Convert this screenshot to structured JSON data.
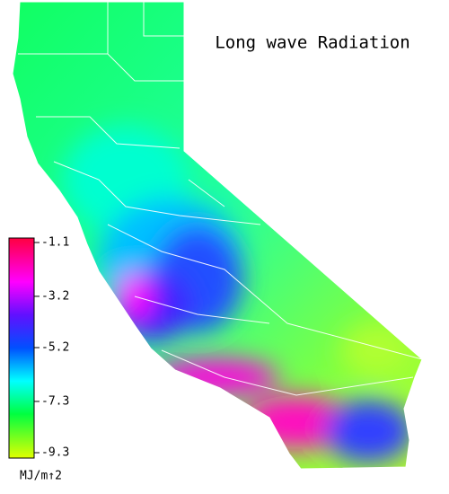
{
  "title": "Long wave Radiation",
  "colorbar": {
    "lim": [
      -9.3,
      -1.1
    ],
    "ticks": [
      -1.1,
      -3.2,
      -5.2,
      -7.3,
      -9.3
    ],
    "unit": "MJ/m↑2"
  }
}
